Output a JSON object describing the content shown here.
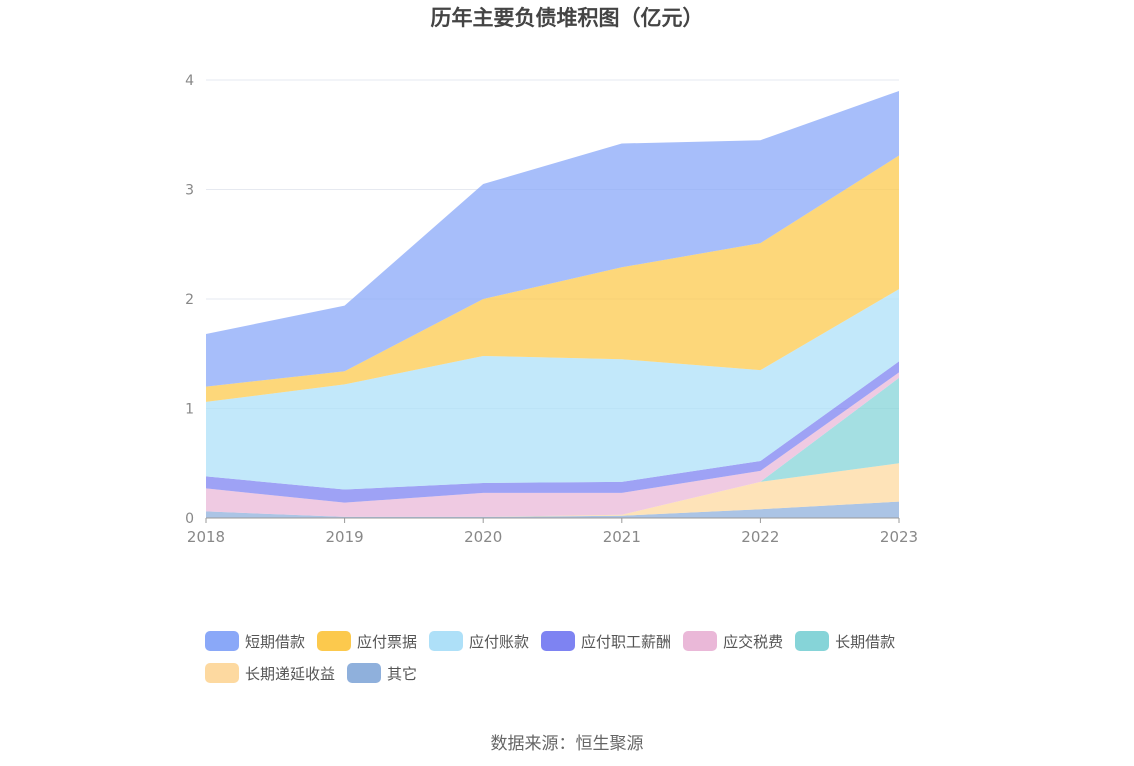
{
  "chart_data": {
    "type": "area",
    "stacked": true,
    "title": "历年主要负债堆积图（亿元）",
    "x": [
      "2018",
      "2019",
      "2020",
      "2021",
      "2022",
      "2023"
    ],
    "ylim": [
      0,
      4
    ],
    "yticks": [
      "0",
      "1",
      "2",
      "3",
      "4"
    ],
    "grid": true,
    "legend_position": "bottom",
    "series": [
      {
        "name": "其它",
        "color": "#8fb0dc",
        "values": [
          0.06,
          0.01,
          0.01,
          0.02,
          0.08,
          0.15
        ]
      },
      {
        "name": "长期递延收益",
        "color": "#fdd9a0",
        "values": [
          0.0,
          0.0,
          0.0,
          0.01,
          0.25,
          0.35
        ]
      },
      {
        "name": "长期借款",
        "color": "#86d4d8",
        "values": [
          0.0,
          0.0,
          0.0,
          0.0,
          0.0,
          0.78
        ]
      },
      {
        "name": "应交税费",
        "color": "#eab8d8",
        "values": [
          0.21,
          0.13,
          0.22,
          0.2,
          0.1,
          0.05
        ]
      },
      {
        "name": "应付职工薪酬",
        "color": "#7e83f2",
        "values": [
          0.11,
          0.12,
          0.09,
          0.1,
          0.09,
          0.1
        ]
      },
      {
        "name": "应付账款",
        "color": "#aee0f8",
        "values": [
          0.68,
          0.96,
          1.16,
          1.12,
          0.83,
          0.66
        ]
      },
      {
        "name": "应付票据",
        "color": "#fcc94d",
        "values": [
          0.14,
          0.12,
          0.52,
          0.84,
          1.16,
          1.22
        ]
      },
      {
        "name": "短期借款",
        "color": "#8aa8f8",
        "values": [
          0.48,
          0.6,
          1.05,
          1.13,
          0.94,
          0.59
        ]
      }
    ]
  },
  "legend": [
    {
      "name": "短期借款",
      "color": "#8aa8f8"
    },
    {
      "name": "应付票据",
      "color": "#fcc94d"
    },
    {
      "name": "应付账款",
      "color": "#aee0f8"
    },
    {
      "name": "应付职工薪酬",
      "color": "#7e83f2"
    },
    {
      "name": "应交税费",
      "color": "#eab8d8"
    },
    {
      "name": "长期借款",
      "color": "#86d4d8"
    },
    {
      "name": "长期递延收益",
      "color": "#fdd9a0"
    },
    {
      "name": "其它",
      "color": "#8fb0dc"
    }
  ],
  "source": "数据来源：恒生聚源"
}
